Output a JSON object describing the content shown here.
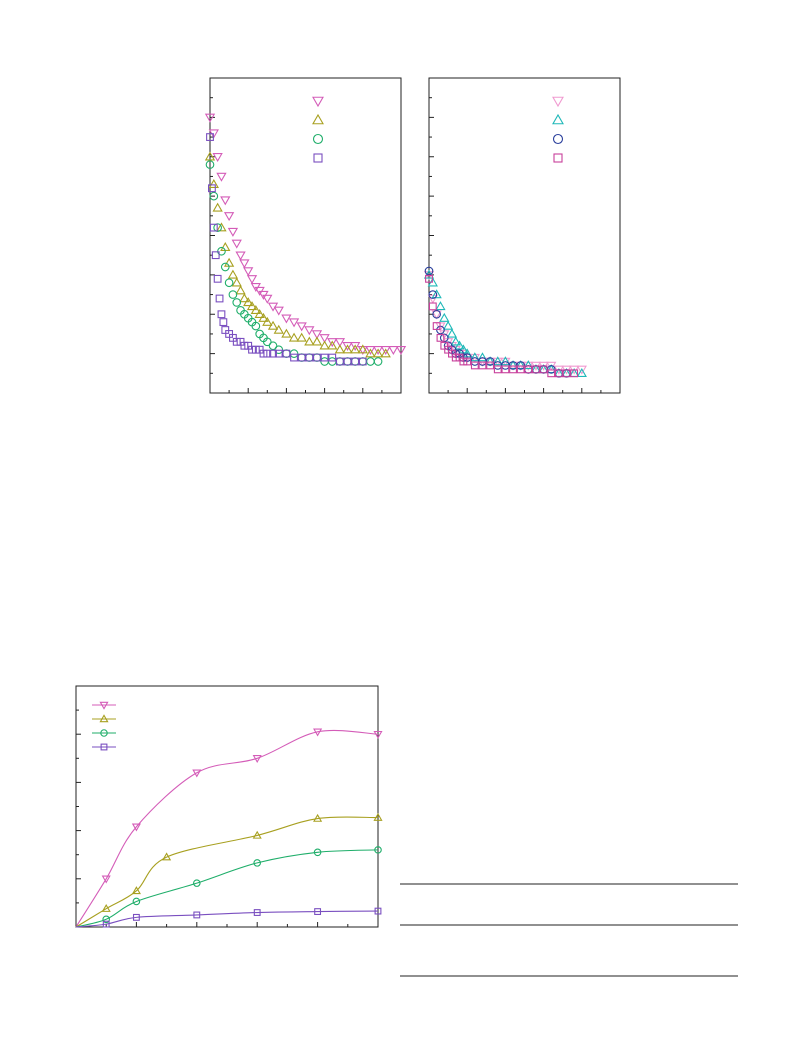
{
  "chart_data": [
    {
      "type": "scatter",
      "title": "",
      "xlabel": "",
      "ylabel": "",
      "xlim": [
        0,
        100
      ],
      "ylim": [
        0,
        80
      ],
      "legend_position": "top-right",
      "grid": false,
      "series": [
        {
          "marker": "triangle-down",
          "color": "#d45cb8",
          "k": 0.05,
          "points": [
            [
              0,
              70
            ],
            [
              2,
              66
            ],
            [
              4,
              60
            ],
            [
              6,
              55
            ],
            [
              8,
              49
            ],
            [
              10,
              45
            ],
            [
              12,
              41
            ],
            [
              14,
              38
            ],
            [
              16,
              35
            ],
            [
              18,
              33
            ],
            [
              20,
              31
            ],
            [
              22,
              29
            ],
            [
              24,
              27
            ],
            [
              26,
              26
            ],
            [
              28,
              25
            ],
            [
              30,
              24
            ],
            [
              33,
              22
            ],
            [
              36,
              21
            ],
            [
              40,
              19
            ],
            [
              44,
              18
            ],
            [
              48,
              17
            ],
            [
              52,
              16
            ],
            [
              56,
              15
            ],
            [
              60,
              14
            ],
            [
              64,
              13
            ],
            [
              68,
              13
            ],
            [
              72,
              12
            ],
            [
              76,
              12
            ],
            [
              80,
              11
            ],
            [
              84,
              11
            ],
            [
              88,
              11
            ],
            [
              92,
              11
            ],
            [
              96,
              11
            ],
            [
              100,
              11
            ]
          ]
        },
        {
          "marker": "triangle-up",
          "color": "#a8a020",
          "k": 0.055,
          "points": [
            [
              0,
              60
            ],
            [
              2,
              53
            ],
            [
              4,
              47
            ],
            [
              6,
              42
            ],
            [
              8,
              37
            ],
            [
              10,
              33
            ],
            [
              12,
              30
            ],
            [
              14,
              28
            ],
            [
              16,
              26
            ],
            [
              18,
              24
            ],
            [
              20,
              23
            ],
            [
              22,
              22
            ],
            [
              24,
              21
            ],
            [
              26,
              20
            ],
            [
              28,
              19
            ],
            [
              30,
              18
            ],
            [
              33,
              17
            ],
            [
              36,
              16
            ],
            [
              40,
              15
            ],
            [
              44,
              14
            ],
            [
              48,
              14
            ],
            [
              52,
              13
            ],
            [
              56,
              13
            ],
            [
              60,
              12
            ],
            [
              64,
              12
            ],
            [
              68,
              11
            ],
            [
              72,
              11
            ],
            [
              76,
              11
            ],
            [
              80,
              11
            ],
            [
              84,
              10
            ],
            [
              88,
              10
            ],
            [
              92,
              10
            ]
          ]
        },
        {
          "marker": "circle",
          "color": "#1fae6a",
          "k": 0.07,
          "points": [
            [
              0,
              58
            ],
            [
              2,
              50
            ],
            [
              4,
              42
            ],
            [
              6,
              36
            ],
            [
              8,
              32
            ],
            [
              10,
              28
            ],
            [
              12,
              25
            ],
            [
              14,
              23
            ],
            [
              16,
              21
            ],
            [
              18,
              20
            ],
            [
              20,
              19
            ],
            [
              22,
              18
            ],
            [
              24,
              17
            ],
            [
              26,
              15
            ],
            [
              28,
              14
            ],
            [
              30,
              13
            ],
            [
              33,
              12
            ],
            [
              36,
              11
            ],
            [
              40,
              10
            ],
            [
              44,
              10
            ],
            [
              48,
              9
            ],
            [
              52,
              9
            ],
            [
              56,
              9
            ],
            [
              60,
              8
            ],
            [
              64,
              8
            ],
            [
              68,
              8
            ],
            [
              72,
              8
            ],
            [
              76,
              8
            ],
            [
              80,
              8
            ],
            [
              84,
              8
            ],
            [
              88,
              8
            ]
          ]
        },
        {
          "marker": "square",
          "color": "#7a4fc0",
          "k": 0.12,
          "points": [
            [
              0,
              65
            ],
            [
              1,
              52
            ],
            [
              2,
              42
            ],
            [
              3,
              35
            ],
            [
              4,
              29
            ],
            [
              5,
              24
            ],
            [
              6,
              20
            ],
            [
              7,
              18
            ],
            [
              8,
              16
            ],
            [
              10,
              15
            ],
            [
              12,
              14
            ],
            [
              14,
              13
            ],
            [
              16,
              13
            ],
            [
              18,
              12
            ],
            [
              20,
              12
            ],
            [
              22,
              11
            ],
            [
              24,
              11
            ],
            [
              26,
              11
            ],
            [
              28,
              10
            ],
            [
              30,
              10
            ],
            [
              33,
              10
            ],
            [
              36,
              10
            ],
            [
              40,
              10
            ],
            [
              44,
              9
            ],
            [
              48,
              9
            ],
            [
              52,
              9
            ],
            [
              56,
              9
            ],
            [
              60,
              9
            ],
            [
              64,
              9
            ],
            [
              68,
              8
            ],
            [
              72,
              8
            ],
            [
              76,
              8
            ],
            [
              80,
              8
            ]
          ]
        }
      ]
    },
    {
      "type": "scatter",
      "title": "",
      "xlabel": "",
      "ylabel": "",
      "xlim": [
        0,
        100
      ],
      "ylim": [
        0,
        80
      ],
      "legend_position": "top-right",
      "grid": false,
      "series": [
        {
          "marker": "triangle-down",
          "color": "#f09ad0",
          "points": [
            [
              0,
              30
            ],
            [
              2,
              24
            ],
            [
              4,
              20
            ],
            [
              6,
              17
            ],
            [
              8,
              15
            ],
            [
              10,
              13
            ],
            [
              12,
              12
            ],
            [
              14,
              11
            ],
            [
              16,
              10
            ],
            [
              18,
              10
            ],
            [
              20,
              9
            ],
            [
              24,
              9
            ],
            [
              28,
              8
            ],
            [
              32,
              8
            ],
            [
              36,
              8
            ],
            [
              40,
              8
            ],
            [
              44,
              7
            ],
            [
              48,
              7
            ],
            [
              52,
              7
            ],
            [
              56,
              7
            ],
            [
              60,
              7
            ],
            [
              64,
              7
            ],
            [
              68,
              6
            ],
            [
              72,
              6
            ],
            [
              76,
              6
            ],
            [
              80,
              6
            ]
          ]
        },
        {
          "marker": "triangle-up",
          "color": "#1fb8b8",
          "points": [
            [
              0,
              30
            ],
            [
              2,
              28
            ],
            [
              4,
              25
            ],
            [
              6,
              22
            ],
            [
              8,
              19
            ],
            [
              10,
              17
            ],
            [
              12,
              15
            ],
            [
              14,
              13
            ],
            [
              16,
              12
            ],
            [
              18,
              11
            ],
            [
              20,
              10
            ],
            [
              24,
              9
            ],
            [
              28,
              9
            ],
            [
              32,
              8
            ],
            [
              36,
              8
            ],
            [
              40,
              8
            ],
            [
              44,
              7
            ],
            [
              48,
              7
            ],
            [
              52,
              7
            ],
            [
              56,
              6
            ],
            [
              60,
              6
            ],
            [
              64,
              6
            ],
            [
              68,
              5
            ],
            [
              72,
              5
            ],
            [
              76,
              5
            ],
            [
              80,
              5
            ]
          ]
        },
        {
          "marker": "circle",
          "color": "#2a3f9c",
          "points": [
            [
              0,
              31
            ],
            [
              2,
              25
            ],
            [
              4,
              20
            ],
            [
              6,
              16
            ],
            [
              8,
              14
            ],
            [
              10,
              12
            ],
            [
              12,
              11
            ],
            [
              14,
              10
            ],
            [
              16,
              10
            ],
            [
              18,
              9
            ],
            [
              20,
              9
            ],
            [
              24,
              8
            ],
            [
              28,
              8
            ],
            [
              32,
              8
            ],
            [
              36,
              7
            ],
            [
              40,
              7
            ],
            [
              44,
              7
            ],
            [
              48,
              7
            ],
            [
              52,
              6
            ],
            [
              56,
              6
            ],
            [
              60,
              6
            ],
            [
              64,
              6
            ],
            [
              68,
              5
            ],
            [
              72,
              5
            ]
          ]
        },
        {
          "marker": "square",
          "color": "#c8409c",
          "points": [
            [
              0,
              29
            ],
            [
              2,
              22
            ],
            [
              4,
              17
            ],
            [
              6,
              14
            ],
            [
              8,
              12
            ],
            [
              10,
              11
            ],
            [
              12,
              10
            ],
            [
              14,
              9
            ],
            [
              16,
              9
            ],
            [
              18,
              8
            ],
            [
              20,
              8
            ],
            [
              24,
              7
            ],
            [
              28,
              7
            ],
            [
              32,
              7
            ],
            [
              36,
              6
            ],
            [
              40,
              6
            ],
            [
              44,
              6
            ],
            [
              48,
              6
            ],
            [
              52,
              6
            ],
            [
              56,
              6
            ],
            [
              60,
              6
            ],
            [
              64,
              5
            ],
            [
              68,
              5
            ],
            [
              72,
              5
            ],
            [
              76,
              5
            ]
          ]
        }
      ]
    },
    {
      "type": "line",
      "title": "",
      "xlabel": "",
      "ylabel": "",
      "xlim": [
        0,
        10
      ],
      "ylim": [
        0,
        5
      ],
      "legend_position": "top-left",
      "grid": false,
      "series": [
        {
          "marker": "triangle-down",
          "color": "#d45cb8",
          "points": [
            [
              0,
              0
            ],
            [
              1,
              1.0
            ],
            [
              2,
              2.08
            ],
            [
              4,
              3.2
            ],
            [
              6,
              3.5
            ],
            [
              8,
              4.05
            ],
            [
              10,
              4.0
            ]
          ]
        },
        {
          "marker": "triangle-up",
          "color": "#a8a020",
          "points": [
            [
              0,
              0
            ],
            [
              1,
              0.38
            ],
            [
              2,
              0.75
            ],
            [
              3,
              1.45
            ],
            [
              6,
              1.9
            ],
            [
              8,
              2.25
            ],
            [
              10,
              2.27
            ]
          ]
        },
        {
          "marker": "circle",
          "color": "#1fae6a",
          "points": [
            [
              0,
              0
            ],
            [
              1,
              0.16
            ],
            [
              2,
              0.53
            ],
            [
              4,
              0.91
            ],
            [
              6,
              1.33
            ],
            [
              8,
              1.55
            ],
            [
              10,
              1.6
            ]
          ]
        },
        {
          "marker": "square",
          "color": "#7a4fc0",
          "points": [
            [
              0,
              0
            ],
            [
              1,
              0.06
            ],
            [
              2,
              0.2
            ],
            [
              4,
              0.25
            ],
            [
              6,
              0.3
            ],
            [
              8,
              0.32
            ],
            [
              10,
              0.33
            ]
          ]
        }
      ]
    }
  ]
}
